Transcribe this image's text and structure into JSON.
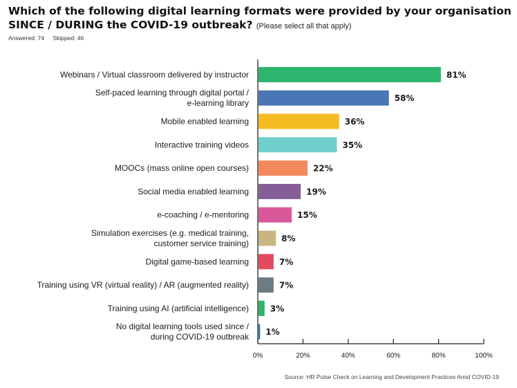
{
  "header": {
    "title": "Which of the following digital learning formats were provided by your organisation SINCE / DURING the COVID-19 outbreak?",
    "note": "(Please select all that apply)",
    "answered": "Answered: 74",
    "skipped": "Skipped: 46"
  },
  "source": "Source: HR Pulse Check on Learning and Development Practices Amid COVID-19",
  "chart_data": {
    "type": "bar",
    "orientation": "horizontal",
    "title": "Which of the following digital learning formats were provided by your organisation SINCE / DURING the COVID-19 outbreak?",
    "categories": [
      [
        "Webinars / Virtual classroom delivered by instructor"
      ],
      [
        "Self-paced learning through digital portal /",
        "e-learning library"
      ],
      [
        "Mobile enabled learning"
      ],
      [
        "Interactive training videos"
      ],
      [
        "MOOCs (mass online open courses)"
      ],
      [
        "Social media enabled learning"
      ],
      [
        "e-coaching / e-mentoring"
      ],
      [
        "Simulation exercises (e.g. medical training,",
        "customer service training)"
      ],
      [
        "Digital game-based learning"
      ],
      [
        "Training using VR (virtual reality) / AR (augmented reality)"
      ],
      [
        "Training using AI (artificial intelligence)"
      ],
      [
        "No digital learning tools used since /",
        "during COVID-19 outbreak"
      ]
    ],
    "values": [
      81,
      58,
      36,
      35,
      22,
      19,
      15,
      8,
      7,
      7,
      3,
      1
    ],
    "value_labels": [
      "81%",
      "58%",
      "36%",
      "35%",
      "22%",
      "19%",
      "15%",
      "8%",
      "7%",
      "7%",
      "3%",
      "1%"
    ],
    "colors": [
      "#2db46e",
      "#4a76b5",
      "#f5bc22",
      "#6fcfcc",
      "#f4895b",
      "#855e98",
      "#d9589a",
      "#c9b580",
      "#e34a5e",
      "#6d7c83",
      "#32b468",
      "#2d6fb0"
    ],
    "xlim": [
      0,
      100
    ],
    "xticks": [
      0,
      20,
      40,
      60,
      80,
      100
    ],
    "xtick_labels": [
      "0%",
      "20%",
      "40%",
      "60%",
      "80%",
      "100%"
    ],
    "grid": false,
    "legend": "none"
  }
}
